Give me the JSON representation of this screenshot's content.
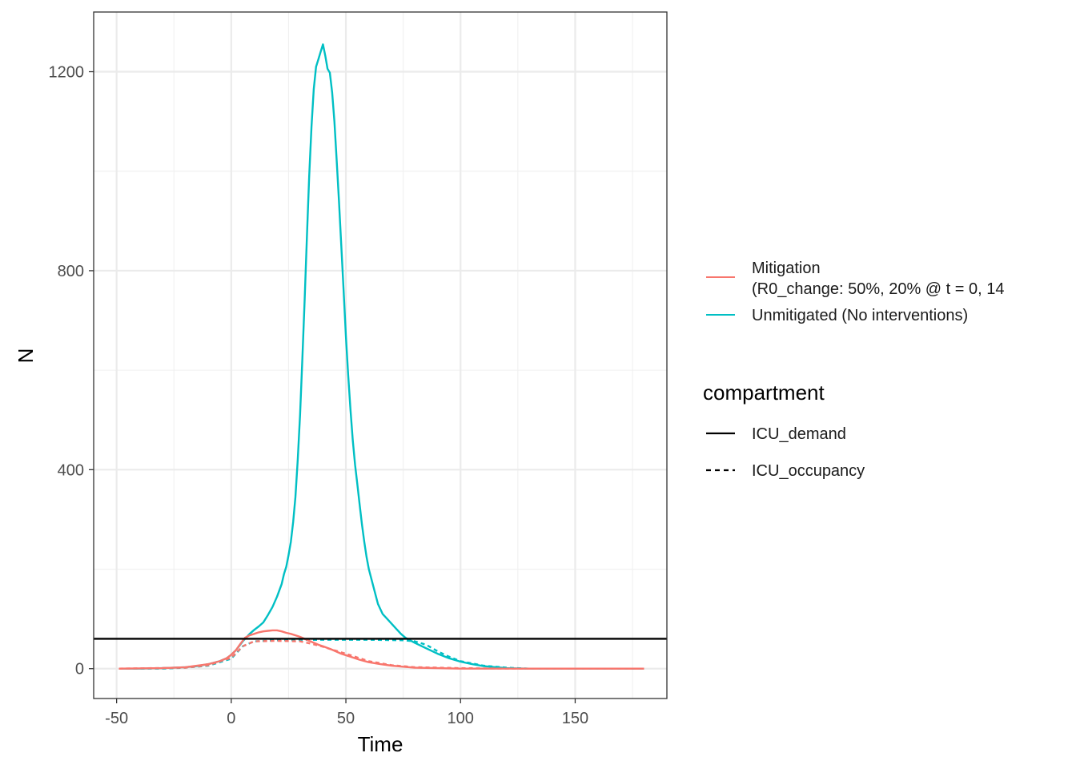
{
  "chart_data": {
    "type": "line",
    "xlabel": "Time",
    "ylabel": "N",
    "xlim": [
      -60,
      190
    ],
    "ylim": [
      -60,
      1320
    ],
    "x_ticks": [
      -50,
      0,
      50,
      100,
      150
    ],
    "y_ticks": [
      0,
      400,
      800,
      1200
    ],
    "x_tick_labels": [
      "-50",
      "0",
      "50",
      "100",
      "150"
    ],
    "y_tick_labels": [
      "0",
      "400",
      "800",
      "1200"
    ],
    "grid": true,
    "legend_position": "right",
    "color_legend": {
      "items": [
        {
          "label_lines": [
            "Mitigation",
            "(R0_change: 50%, 20% @ t = 0, 14"
          ],
          "color": "#F8766D"
        },
        {
          "label_lines": [
            "Unmitigated (No interventions)"
          ],
          "color": "#00BFC4"
        }
      ]
    },
    "linetype_legend": {
      "title": "compartment",
      "items": [
        {
          "label": "ICU_demand",
          "linetype": "solid"
        },
        {
          "label": "ICU_occupancy",
          "linetype": "dashed"
        }
      ]
    },
    "hlines": [
      {
        "y": 60,
        "color": "#000000",
        "linetype": "solid"
      }
    ],
    "series": [
      {
        "scenario": "Unmitigated (No interventions)",
        "compartment": "ICU_demand",
        "color": "#00BFC4",
        "linetype": "solid",
        "points": [
          [
            -49,
            0
          ],
          [
            -40,
            0
          ],
          [
            -30,
            1
          ],
          [
            -20,
            3
          ],
          [
            -15,
            5
          ],
          [
            -10,
            9
          ],
          [
            -5,
            15
          ],
          [
            -2,
            21
          ],
          [
            0,
            28
          ],
          [
            2,
            37
          ],
          [
            5,
            55
          ],
          [
            8,
            70
          ],
          [
            10,
            78
          ],
          [
            12,
            85
          ],
          [
            14,
            93
          ],
          [
            16,
            108
          ],
          [
            18,
            124
          ],
          [
            20,
            145
          ],
          [
            22,
            170
          ],
          [
            23,
            190
          ],
          [
            24,
            205
          ],
          [
            25,
            228
          ],
          [
            26,
            255
          ],
          [
            27,
            295
          ],
          [
            28,
            345
          ],
          [
            29,
            420
          ],
          [
            30,
            510
          ],
          [
            31,
            620
          ],
          [
            32,
            740
          ],
          [
            33,
            870
          ],
          [
            34,
            990
          ],
          [
            35,
            1090
          ],
          [
            36,
            1165
          ],
          [
            37,
            1210
          ],
          [
            38,
            1225
          ],
          [
            39,
            1240
          ],
          [
            40,
            1255
          ],
          [
            41,
            1232
          ],
          [
            42,
            1206
          ],
          [
            43,
            1198
          ],
          [
            44,
            1158
          ],
          [
            45,
            1100
          ],
          [
            46,
            1020
          ],
          [
            47,
            940
          ],
          [
            48,
            850
          ],
          [
            49,
            760
          ],
          [
            50,
            670
          ],
          [
            51,
            590
          ],
          [
            52,
            520
          ],
          [
            53,
            460
          ],
          [
            54,
            410
          ],
          [
            55,
            370
          ],
          [
            56,
            330
          ],
          [
            57,
            290
          ],
          [
            58,
            255
          ],
          [
            59,
            225
          ],
          [
            60,
            200
          ],
          [
            62,
            165
          ],
          [
            64,
            130
          ],
          [
            66,
            110
          ],
          [
            68,
            100
          ],
          [
            70,
            90
          ],
          [
            72,
            80
          ],
          [
            74,
            70
          ],
          [
            76,
            62
          ],
          [
            78,
            57
          ],
          [
            80,
            52
          ],
          [
            85,
            41
          ],
          [
            90,
            30
          ],
          [
            95,
            21
          ],
          [
            100,
            14
          ],
          [
            105,
            9
          ],
          [
            110,
            5
          ],
          [
            120,
            1
          ],
          [
            130,
            0
          ],
          [
            150,
            0
          ],
          [
            180,
            0
          ]
        ]
      },
      {
        "scenario": "Unmitigated (No interventions)",
        "compartment": "ICU_occupancy",
        "color": "#00BFC4",
        "linetype": "dashed",
        "points": [
          [
            -49,
            0
          ],
          [
            -30,
            0
          ],
          [
            -20,
            2
          ],
          [
            -10,
            6
          ],
          [
            0,
            20
          ],
          [
            5,
            45
          ],
          [
            10,
            55
          ],
          [
            20,
            57
          ],
          [
            40,
            58
          ],
          [
            60,
            58
          ],
          [
            75,
            57
          ],
          [
            80,
            55
          ],
          [
            85,
            48
          ],
          [
            90,
            35
          ],
          [
            95,
            24
          ],
          [
            100,
            15
          ],
          [
            110,
            6
          ],
          [
            120,
            2
          ],
          [
            130,
            0
          ],
          [
            150,
            0
          ],
          [
            180,
            0
          ]
        ]
      },
      {
        "scenario": "Mitigation (R0_change: 50%, 20% @ t = 0, 14",
        "compartment": "ICU_demand",
        "color": "#F8766D",
        "linetype": "solid",
        "points": [
          [
            -49,
            0
          ],
          [
            -30,
            1
          ],
          [
            -20,
            3
          ],
          [
            -10,
            9
          ],
          [
            -5,
            15
          ],
          [
            -2,
            21
          ],
          [
            0,
            28
          ],
          [
            2,
            37
          ],
          [
            4,
            50
          ],
          [
            6,
            62
          ],
          [
            8,
            67
          ],
          [
            10,
            70
          ],
          [
            12,
            73
          ],
          [
            14,
            75
          ],
          [
            16,
            76
          ],
          [
            18,
            77
          ],
          [
            20,
            77
          ],
          [
            22,
            75
          ],
          [
            24,
            72
          ],
          [
            26,
            70
          ],
          [
            28,
            67
          ],
          [
            30,
            64
          ],
          [
            32,
            60
          ],
          [
            34,
            56
          ],
          [
            36,
            52
          ],
          [
            38,
            48
          ],
          [
            40,
            45
          ],
          [
            44,
            38
          ],
          [
            48,
            30
          ],
          [
            52,
            24
          ],
          [
            56,
            18
          ],
          [
            60,
            13
          ],
          [
            65,
            9
          ],
          [
            70,
            6
          ],
          [
            75,
            4
          ],
          [
            80,
            2
          ],
          [
            90,
            1
          ],
          [
            100,
            0
          ],
          [
            180,
            0
          ]
        ]
      },
      {
        "scenario": "Mitigation (R0_change: 50%, 20% @ t = 0, 14",
        "compartment": "ICU_occupancy",
        "color": "#F8766D",
        "linetype": "dashed",
        "points": [
          [
            -49,
            0
          ],
          [
            -20,
            2
          ],
          [
            -10,
            7
          ],
          [
            0,
            22
          ],
          [
            5,
            45
          ],
          [
            10,
            55
          ],
          [
            20,
            56
          ],
          [
            30,
            55
          ],
          [
            35,
            50
          ],
          [
            40,
            44
          ],
          [
            50,
            30
          ],
          [
            60,
            15
          ],
          [
            70,
            7
          ],
          [
            80,
            3
          ],
          [
            100,
            1
          ],
          [
            120,
            0
          ],
          [
            180,
            0
          ]
        ]
      }
    ]
  }
}
